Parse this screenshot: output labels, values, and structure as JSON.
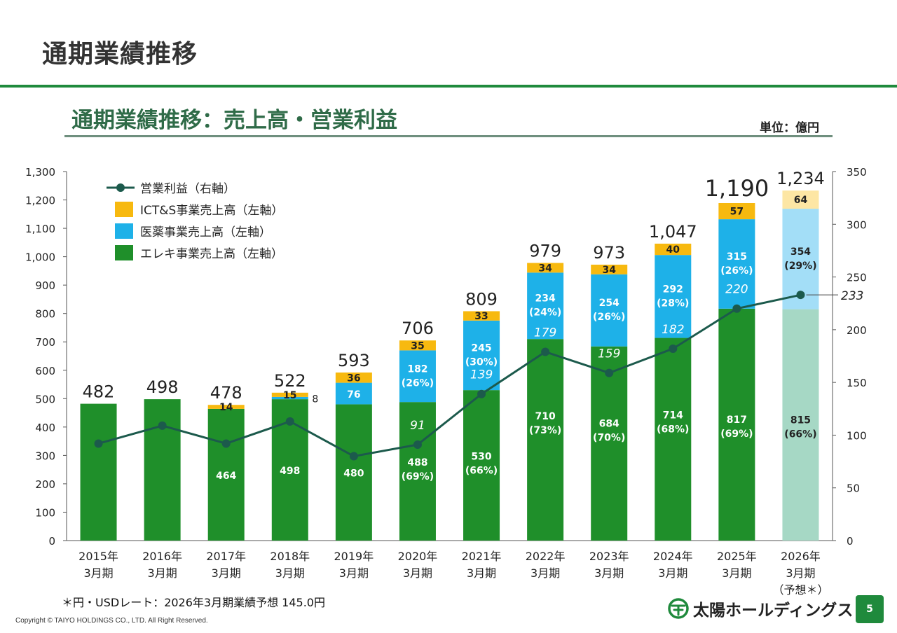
{
  "page": {
    "title": "通期業績推移",
    "section_title": "通期業績推移：売上高・営業利益",
    "unit": "単位：億円",
    "footnote": "＊円・USDレート：2026年3月期業績予想 145.0円",
    "copyright": "Copyright © TAIYO HOLDINGS CO., LTD.  All Right Reserved.",
    "logo_text": "太陽ホールディングス",
    "page_number": "5"
  },
  "colors": {
    "electronics": "#1f8f2a",
    "pharma": "#1eb1e8",
    "icts": "#f7b90f",
    "electronics_forecast": "#a6d8c5",
    "pharma_forecast": "#a3def7",
    "icts_forecast": "#fde6a4",
    "operating_profit_line": "#1c5a4c",
    "brand_green": "#1f8a3c"
  },
  "chart_data": {
    "type": "bar",
    "categories": [
      [
        "2015年",
        "3月期"
      ],
      [
        "2016年",
        "3月期"
      ],
      [
        "2017年",
        "3月期"
      ],
      [
        "2018年",
        "3月期"
      ],
      [
        "2019年",
        "3月期"
      ],
      [
        "2020年",
        "3月期"
      ],
      [
        "2021年",
        "3月期"
      ],
      [
        "2022年",
        "3月期"
      ],
      [
        "2023年",
        "3月期"
      ],
      [
        "2024年",
        "3月期"
      ],
      [
        "2025年",
        "3月期"
      ],
      [
        "2026年",
        "3月期",
        "（予想＊）"
      ]
    ],
    "stacked": true,
    "series": [
      {
        "name": "エレキ事業売上高（左軸）",
        "values": [
          482,
          498,
          464,
          498,
          480,
          488,
          530,
          710,
          684,
          714,
          817,
          815
        ],
        "labels": [
          "",
          "",
          "464",
          "498",
          "480",
          "488\n(69%)",
          "530\n(66%)",
          "710\n(73%)",
          "684\n(70%)",
          "714\n(68%)",
          "817\n(69%)",
          "815\n(66%)"
        ]
      },
      {
        "name": "医薬事業売上高（左軸）",
        "values": [
          0,
          0,
          0,
          8,
          76,
          182,
          245,
          234,
          254,
          292,
          315,
          354
        ],
        "labels": [
          "",
          "",
          "",
          "8",
          "76",
          "182\n(26%)",
          "245\n(30%)",
          "234\n(24%)",
          "254\n(26%)",
          "292\n(28%)",
          "315\n(26%)",
          "354\n(29%)"
        ]
      },
      {
        "name": "ICT&S事業売上高（左軸）",
        "values": [
          0,
          0,
          14,
          15,
          36,
          35,
          33,
          34,
          34,
          40,
          57,
          64
        ],
        "labels": [
          "",
          "",
          "14",
          "15",
          "36",
          "35",
          "33",
          "34",
          "34",
          "40",
          "57",
          "64"
        ]
      }
    ],
    "totals": [
      "482",
      "498",
      "478",
      "522",
      "593",
      "706",
      "809",
      "979",
      "973",
      "1,047",
      "1,190",
      "1,234"
    ],
    "line_series": {
      "name": "営業利益（右軸）",
      "values": [
        92,
        109,
        92,
        113,
        80,
        91,
        139,
        179,
        159,
        182,
        220,
        233
      ],
      "labels": [
        "",
        "",
        "",
        "",
        "",
        "91",
        "139",
        "179",
        "159",
        "182",
        "220",
        "233"
      ]
    },
    "ylim": [
      0,
      1300
    ],
    "y_ticks": [
      "0",
      "100",
      "200",
      "300",
      "400",
      "500",
      "600",
      "700",
      "800",
      "900",
      "1,000",
      "1,100",
      "1,200",
      "1,300"
    ],
    "y2lim": [
      0,
      350
    ],
    "y2_ticks": [
      "0",
      "50",
      "100",
      "150",
      "200",
      "250",
      "300",
      "350"
    ],
    "legend_order": [
      "line",
      "icts",
      "pharma",
      "electronics"
    ],
    "legend_position": "top-left",
    "forecast_index": 11
  }
}
